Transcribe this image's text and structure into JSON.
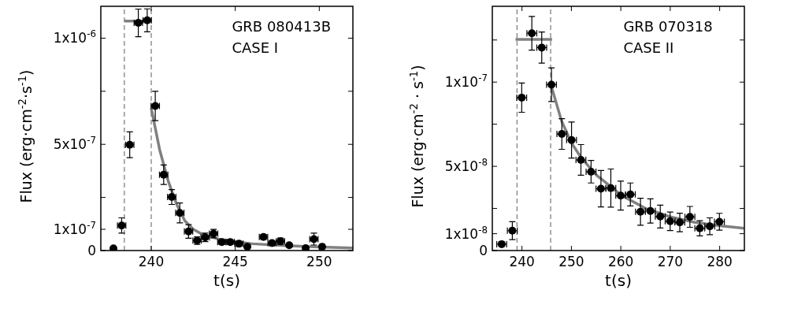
{
  "chart_data": [
    {
      "type": "scatter",
      "xlabel": "t(s)",
      "ylabel": "Flux (erg·cm$^{-2}$·s$^{-1}$)",
      "annotations": [
        "GRB 080413B",
        "CASE I"
      ],
      "xlim": [
        237,
        252
      ],
      "xticks": [
        240,
        245,
        250
      ],
      "ylim": [
        0,
        1.15e-06
      ],
      "yticks": [
        {
          "value": 0,
          "label": "0"
        },
        {
          "value": 1e-07,
          "label": "1x10$^{-7}$"
        },
        {
          "value": 2.5e-07,
          "label": null
        },
        {
          "value": 5e-07,
          "label": "5x10$^{-7}$"
        },
        {
          "value": 7.5e-07,
          "label": null
        },
        {
          "value": 1e-06,
          "label": "1x10$^{-6}$"
        }
      ],
      "marker": "circle",
      "grid": false,
      "ref_lines": [
        {
          "axis": "x",
          "value": 238.4,
          "color": "#808080",
          "line_style": "dashed"
        },
        {
          "axis": "x",
          "value": 240,
          "color": "#808080",
          "line_style": "dashed"
        }
      ],
      "series": [
        {
          "type": "scatter",
          "color": "#000000",
          "x": [
            237.75,
            238.24,
            238.72,
            239.23,
            239.76,
            240.24,
            240.74,
            241.22,
            241.7,
            242.22,
            242.73,
            243.21,
            243.71,
            244.2,
            244.7,
            245.22,
            245.72,
            246.68,
            247.19,
            247.69,
            248.21,
            249.19,
            249.68,
            250.17
          ],
          "values": [
            1e-08,
            1.18e-07,
            4.98e-07,
            1.072e-06,
            1.084e-06,
            6.81e-07,
            3.57e-07,
            2.52e-07,
            1.77e-07,
            9e-08,
            4.7e-08,
            6.2e-08,
            8e-08,
            4e-08,
            4e-08,
            3.2e-08,
            1.8e-08,
            6.4e-08,
            3.5e-08,
            4.4e-08,
            2.5e-08,
            1.1e-08,
            5.4e-08,
            1.8e-08
          ],
          "errors": [
            null,
            3.6e-08,
            6.1e-08,
            6.5e-08,
            5.4e-08,
            6.9e-08,
            4.6e-08,
            3.5e-08,
            4.7e-08,
            3.2e-08,
            1.8e-08,
            2e-08,
            2e-08,
            1.2e-08,
            1.2e-08,
            1.2e-08,
            null,
            1.2e-08,
            1.2e-08,
            1.5e-08,
            null,
            null,
            2.8e-08,
            null
          ],
          "xerrors": [
            null,
            0.25,
            0.25,
            0.25,
            0.25,
            0.25,
            0.25,
            0.25,
            0.25,
            0.25,
            0.25,
            0.25,
            0.25,
            0.25,
            0.25,
            0.25,
            null,
            0.25,
            0.25,
            0.25,
            null,
            null,
            0.25,
            null
          ]
        },
        {
          "type": "line",
          "marker": "none",
          "color": "#808080",
          "x": [
            238.4,
            240
          ],
          "values": [
            1.08e-06,
            1.08e-06
          ]
        },
        {
          "type": "line",
          "marker": "none",
          "color": "#808080",
          "x": [
            240,
            240.5,
            241,
            241.5,
            242,
            242.5,
            243,
            244,
            245,
            246,
            248,
            250,
            252
          ],
          "values": [
            6.7e-07,
            4.75e-07,
            3.3e-07,
            2.2e-07,
            1.4e-07,
            1e-07,
            7.8e-08,
            5.4e-08,
            4.2e-08,
            3.2e-08,
            2.3e-08,
            1.7e-08,
            1.2e-08
          ]
        }
      ]
    },
    {
      "type": "scatter",
      "xlabel": "t(s)",
      "ylabel": "Flux (erg·cm$^{-2}$ · s$^{-1}$)",
      "annotations": [
        "GRB 070318",
        "CASE II"
      ],
      "xlim": [
        234,
        285
      ],
      "xticks": [
        240,
        250,
        260,
        270,
        280
      ],
      "ylim": [
        0,
        1.45e-07
      ],
      "yticks": [
        {
          "value": 0,
          "label": "0"
        },
        {
          "value": 1e-08,
          "label": "1x10$^{-8}$"
        },
        {
          "value": 2.5e-08,
          "label": null
        },
        {
          "value": 5e-08,
          "label": "5x10$^{-8}$"
        },
        {
          "value": 7.5e-08,
          "label": null
        },
        {
          "value": 1e-07,
          "label": "1x10$^{-7}$"
        },
        {
          "value": 1.25e-07,
          "label": null
        }
      ],
      "marker": "circle",
      "grid": false,
      "ref_lines": [
        {
          "axis": "x",
          "value": 239,
          "color": "#808080",
          "line_style": "dashed"
        },
        {
          "axis": "x",
          "value": 245.8,
          "color": "#808080",
          "line_style": "dashed"
        }
      ],
      "series": [
        {
          "type": "scatter",
          "color": "#000000",
          "x": [
            235.9,
            238.05,
            239.95,
            242,
            244,
            245.97,
            248.07,
            250.03,
            251.93,
            253.98,
            255.98,
            257.98,
            259.98,
            261.93,
            263.98,
            265.98,
            267.98,
            269.98,
            271.93,
            273.98,
            275.98,
            278,
            279.95
          ],
          "values": [
            3.8e-09,
            1.18e-08,
            9.08e-08,
            1.29e-07,
            1.205e-07,
            9.85e-08,
            6.92e-08,
            6.56e-08,
            5.38e-08,
            4.68e-08,
            3.67e-08,
            3.71e-08,
            3.26e-08,
            3.33e-08,
            2.3e-08,
            2.35e-08,
            2.02e-08,
            1.74e-08,
            1.67e-08,
            2e-08,
            1.32e-08,
            1.44e-08,
            1.71e-08
          ],
          "errors": [
            1e-09,
            5.3e-09,
            8.7e-09,
            1e-08,
            9.2e-09,
            1e-08,
            9.1e-09,
            1.07e-08,
            9.1e-09,
            6.7e-09,
            1.08e-08,
            1.13e-08,
            8.6e-09,
            6.8e-09,
            8e-09,
            7.2e-09,
            6.8e-09,
            5.5e-09,
            5.5e-09,
            6.2e-09,
            4.5e-09,
            5e-09,
            5e-09
          ],
          "xerrors": [
            1,
            1,
            1,
            1,
            1,
            1,
            1,
            1,
            1,
            1,
            1,
            1,
            1,
            1,
            1,
            1,
            1,
            1,
            1,
            1,
            1,
            1,
            1
          ]
        },
        {
          "type": "line",
          "marker": "none",
          "color": "#808080",
          "x": [
            238.7,
            246.1
          ],
          "values": [
            1.253e-07,
            1.253e-07
          ]
        },
        {
          "type": "line",
          "marker": "none",
          "color": "#808080",
          "x": [
            246,
            248,
            250,
            252,
            255,
            260,
            265,
            270,
            275,
            280,
            285
          ],
          "values": [
            9.7e-08,
            7.7e-08,
            6.4e-08,
            5.5e-08,
            4.5e-08,
            3.3e-08,
            2.5e-08,
            2e-08,
            1.67e-08,
            1.47e-08,
            1.32e-08
          ]
        }
      ]
    }
  ]
}
